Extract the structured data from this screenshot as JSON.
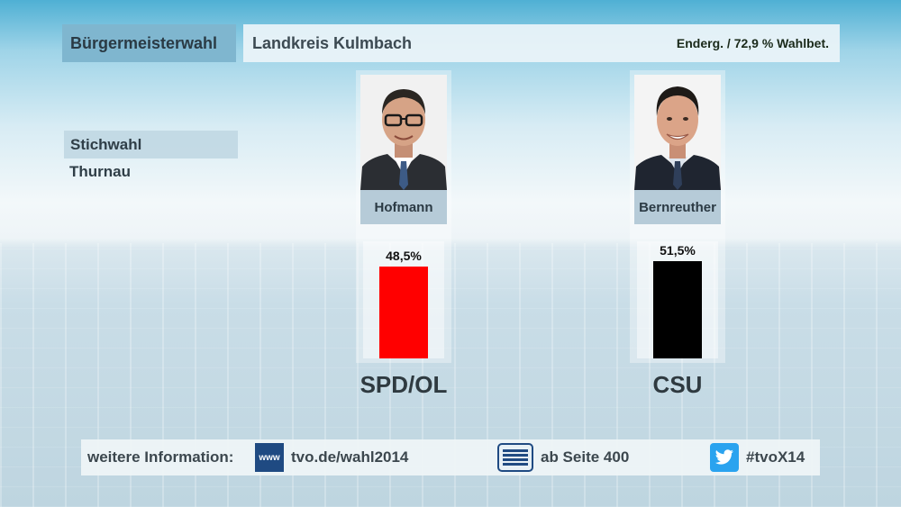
{
  "header": {
    "election_type": "Bürgermeisterwahl",
    "region": "Landkreis Kulmbach",
    "status": "Enderg. / 72,9 % Wahlbet."
  },
  "subheader": {
    "round": "Stichwahl",
    "municipality": "Thurnau"
  },
  "candidates": [
    {
      "name": "Hofmann",
      "percent_label": "48,5%",
      "party": "SPD/OL",
      "bar_color": "#ff0000"
    },
    {
      "name": "Bernreuther",
      "percent_label": "51,5%",
      "party": "CSU",
      "bar_color": "#000000"
    }
  ],
  "chart_data": {
    "type": "bar",
    "categories": [
      "Hofmann",
      "Bernreuther"
    ],
    "values": [
      48.5,
      51.5
    ],
    "ylim": [
      0,
      60
    ]
  },
  "footer": {
    "label": "weitere Information:",
    "www_icon_text": "www",
    "website": "tvo.de/wahl2014",
    "teletext": "ab Seite 400",
    "hashtag": "#tvoX14",
    "icons": [
      "www-icon",
      "teletext-icon",
      "twitter-icon"
    ]
  }
}
